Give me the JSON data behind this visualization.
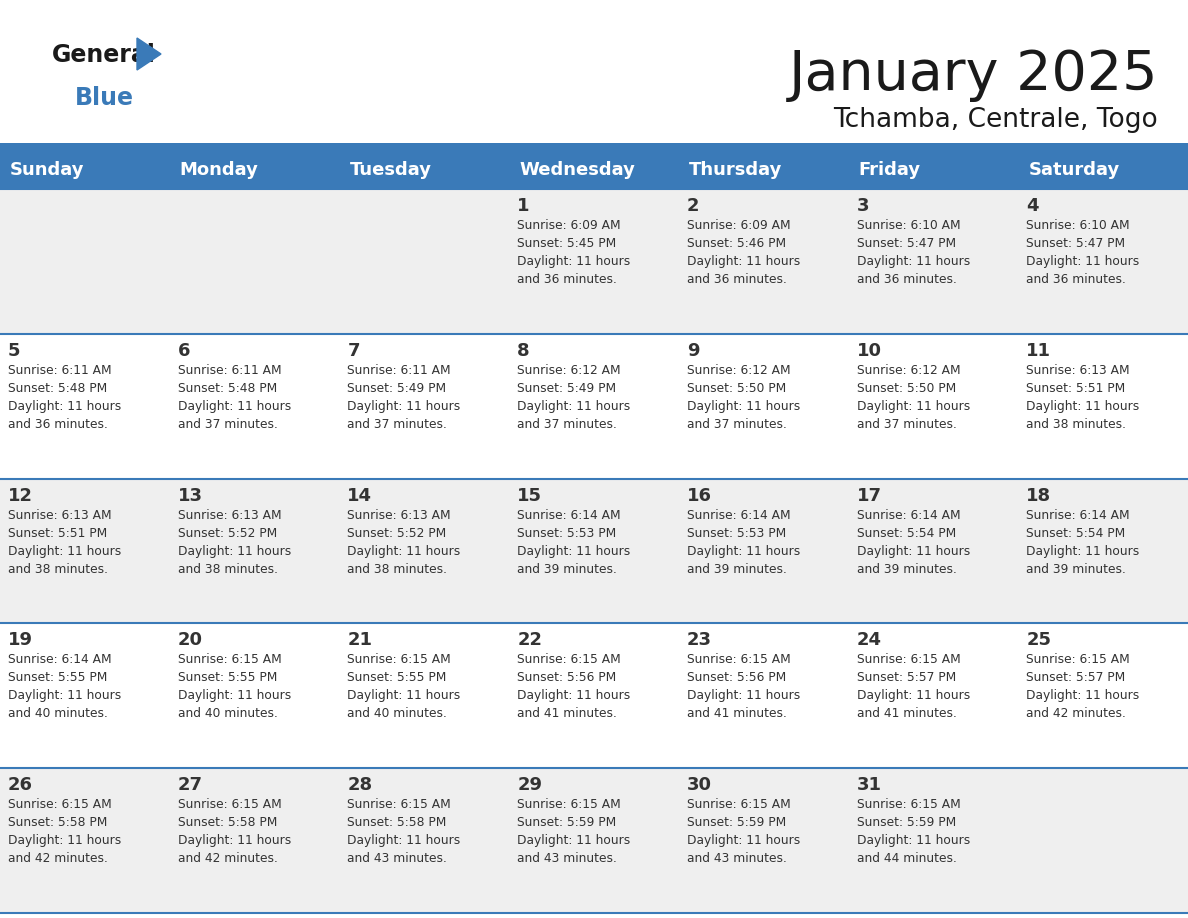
{
  "title": "January 2025",
  "subtitle": "Tchamba, Centrale, Togo",
  "header_color": "#3a7ab8",
  "header_text_color": "#ffffff",
  "cell_bg_light": "#efefef",
  "cell_bg_white": "#ffffff",
  "border_color": "#3a7ab8",
  "text_color": "#333333",
  "separator_color": "#3a7ab8",
  "days_of_week": [
    "Sunday",
    "Monday",
    "Tuesday",
    "Wednesday",
    "Thursday",
    "Friday",
    "Saturday"
  ],
  "calendar_data": [
    [
      {
        "day": "",
        "info": ""
      },
      {
        "day": "",
        "info": ""
      },
      {
        "day": "",
        "info": ""
      },
      {
        "day": "1",
        "info": "Sunrise: 6:09 AM\nSunset: 5:45 PM\nDaylight: 11 hours\nand 36 minutes."
      },
      {
        "day": "2",
        "info": "Sunrise: 6:09 AM\nSunset: 5:46 PM\nDaylight: 11 hours\nand 36 minutes."
      },
      {
        "day": "3",
        "info": "Sunrise: 6:10 AM\nSunset: 5:47 PM\nDaylight: 11 hours\nand 36 minutes."
      },
      {
        "day": "4",
        "info": "Sunrise: 6:10 AM\nSunset: 5:47 PM\nDaylight: 11 hours\nand 36 minutes."
      }
    ],
    [
      {
        "day": "5",
        "info": "Sunrise: 6:11 AM\nSunset: 5:48 PM\nDaylight: 11 hours\nand 36 minutes."
      },
      {
        "day": "6",
        "info": "Sunrise: 6:11 AM\nSunset: 5:48 PM\nDaylight: 11 hours\nand 37 minutes."
      },
      {
        "day": "7",
        "info": "Sunrise: 6:11 AM\nSunset: 5:49 PM\nDaylight: 11 hours\nand 37 minutes."
      },
      {
        "day": "8",
        "info": "Sunrise: 6:12 AM\nSunset: 5:49 PM\nDaylight: 11 hours\nand 37 minutes."
      },
      {
        "day": "9",
        "info": "Sunrise: 6:12 AM\nSunset: 5:50 PM\nDaylight: 11 hours\nand 37 minutes."
      },
      {
        "day": "10",
        "info": "Sunrise: 6:12 AM\nSunset: 5:50 PM\nDaylight: 11 hours\nand 37 minutes."
      },
      {
        "day": "11",
        "info": "Sunrise: 6:13 AM\nSunset: 5:51 PM\nDaylight: 11 hours\nand 38 minutes."
      }
    ],
    [
      {
        "day": "12",
        "info": "Sunrise: 6:13 AM\nSunset: 5:51 PM\nDaylight: 11 hours\nand 38 minutes."
      },
      {
        "day": "13",
        "info": "Sunrise: 6:13 AM\nSunset: 5:52 PM\nDaylight: 11 hours\nand 38 minutes."
      },
      {
        "day": "14",
        "info": "Sunrise: 6:13 AM\nSunset: 5:52 PM\nDaylight: 11 hours\nand 38 minutes."
      },
      {
        "day": "15",
        "info": "Sunrise: 6:14 AM\nSunset: 5:53 PM\nDaylight: 11 hours\nand 39 minutes."
      },
      {
        "day": "16",
        "info": "Sunrise: 6:14 AM\nSunset: 5:53 PM\nDaylight: 11 hours\nand 39 minutes."
      },
      {
        "day": "17",
        "info": "Sunrise: 6:14 AM\nSunset: 5:54 PM\nDaylight: 11 hours\nand 39 minutes."
      },
      {
        "day": "18",
        "info": "Sunrise: 6:14 AM\nSunset: 5:54 PM\nDaylight: 11 hours\nand 39 minutes."
      }
    ],
    [
      {
        "day": "19",
        "info": "Sunrise: 6:14 AM\nSunset: 5:55 PM\nDaylight: 11 hours\nand 40 minutes."
      },
      {
        "day": "20",
        "info": "Sunrise: 6:15 AM\nSunset: 5:55 PM\nDaylight: 11 hours\nand 40 minutes."
      },
      {
        "day": "21",
        "info": "Sunrise: 6:15 AM\nSunset: 5:55 PM\nDaylight: 11 hours\nand 40 minutes."
      },
      {
        "day": "22",
        "info": "Sunrise: 6:15 AM\nSunset: 5:56 PM\nDaylight: 11 hours\nand 41 minutes."
      },
      {
        "day": "23",
        "info": "Sunrise: 6:15 AM\nSunset: 5:56 PM\nDaylight: 11 hours\nand 41 minutes."
      },
      {
        "day": "24",
        "info": "Sunrise: 6:15 AM\nSunset: 5:57 PM\nDaylight: 11 hours\nand 41 minutes."
      },
      {
        "day": "25",
        "info": "Sunrise: 6:15 AM\nSunset: 5:57 PM\nDaylight: 11 hours\nand 42 minutes."
      }
    ],
    [
      {
        "day": "26",
        "info": "Sunrise: 6:15 AM\nSunset: 5:58 PM\nDaylight: 11 hours\nand 42 minutes."
      },
      {
        "day": "27",
        "info": "Sunrise: 6:15 AM\nSunset: 5:58 PM\nDaylight: 11 hours\nand 42 minutes."
      },
      {
        "day": "28",
        "info": "Sunrise: 6:15 AM\nSunset: 5:58 PM\nDaylight: 11 hours\nand 43 minutes."
      },
      {
        "day": "29",
        "info": "Sunrise: 6:15 AM\nSunset: 5:59 PM\nDaylight: 11 hours\nand 43 minutes."
      },
      {
        "day": "30",
        "info": "Sunrise: 6:15 AM\nSunset: 5:59 PM\nDaylight: 11 hours\nand 43 minutes."
      },
      {
        "day": "31",
        "info": "Sunrise: 6:15 AM\nSunset: 5:59 PM\nDaylight: 11 hours\nand 44 minutes."
      },
      {
        "day": "",
        "info": ""
      }
    ]
  ],
  "fig_width": 11.88,
  "fig_height": 9.18,
  "dpi": 100
}
